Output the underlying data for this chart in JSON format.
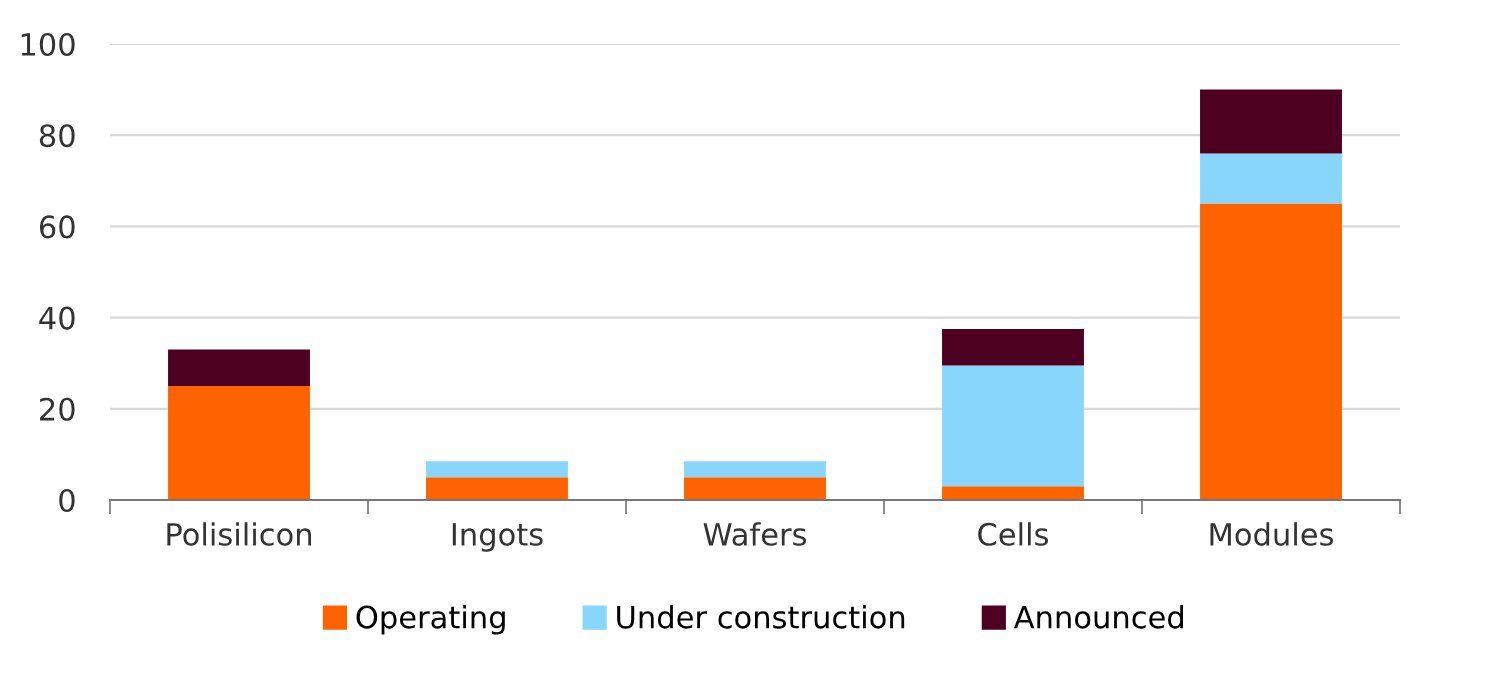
{
  "chart_data": {
    "type": "bar",
    "stacked": true,
    "categories": [
      "Polisilicon",
      "Ingots",
      "Wafers",
      "Cells",
      "Modules"
    ],
    "series": [
      {
        "name": "Operating",
        "color": "#ff6200",
        "values": [
          25,
          5,
          5,
          3,
          65
        ]
      },
      {
        "name": "Under construction",
        "color": "#89d6fd",
        "values": [
          0,
          3.5,
          3.5,
          26.5,
          11
        ]
      },
      {
        "name": "Announced",
        "color": "#4d0020",
        "values": [
          8,
          0,
          0,
          8,
          14
        ]
      }
    ],
    "ylim": [
      0,
      100
    ],
    "yticks": [
      0,
      20,
      40,
      60,
      80,
      100
    ],
    "grid": "y",
    "legend": "bottom"
  }
}
